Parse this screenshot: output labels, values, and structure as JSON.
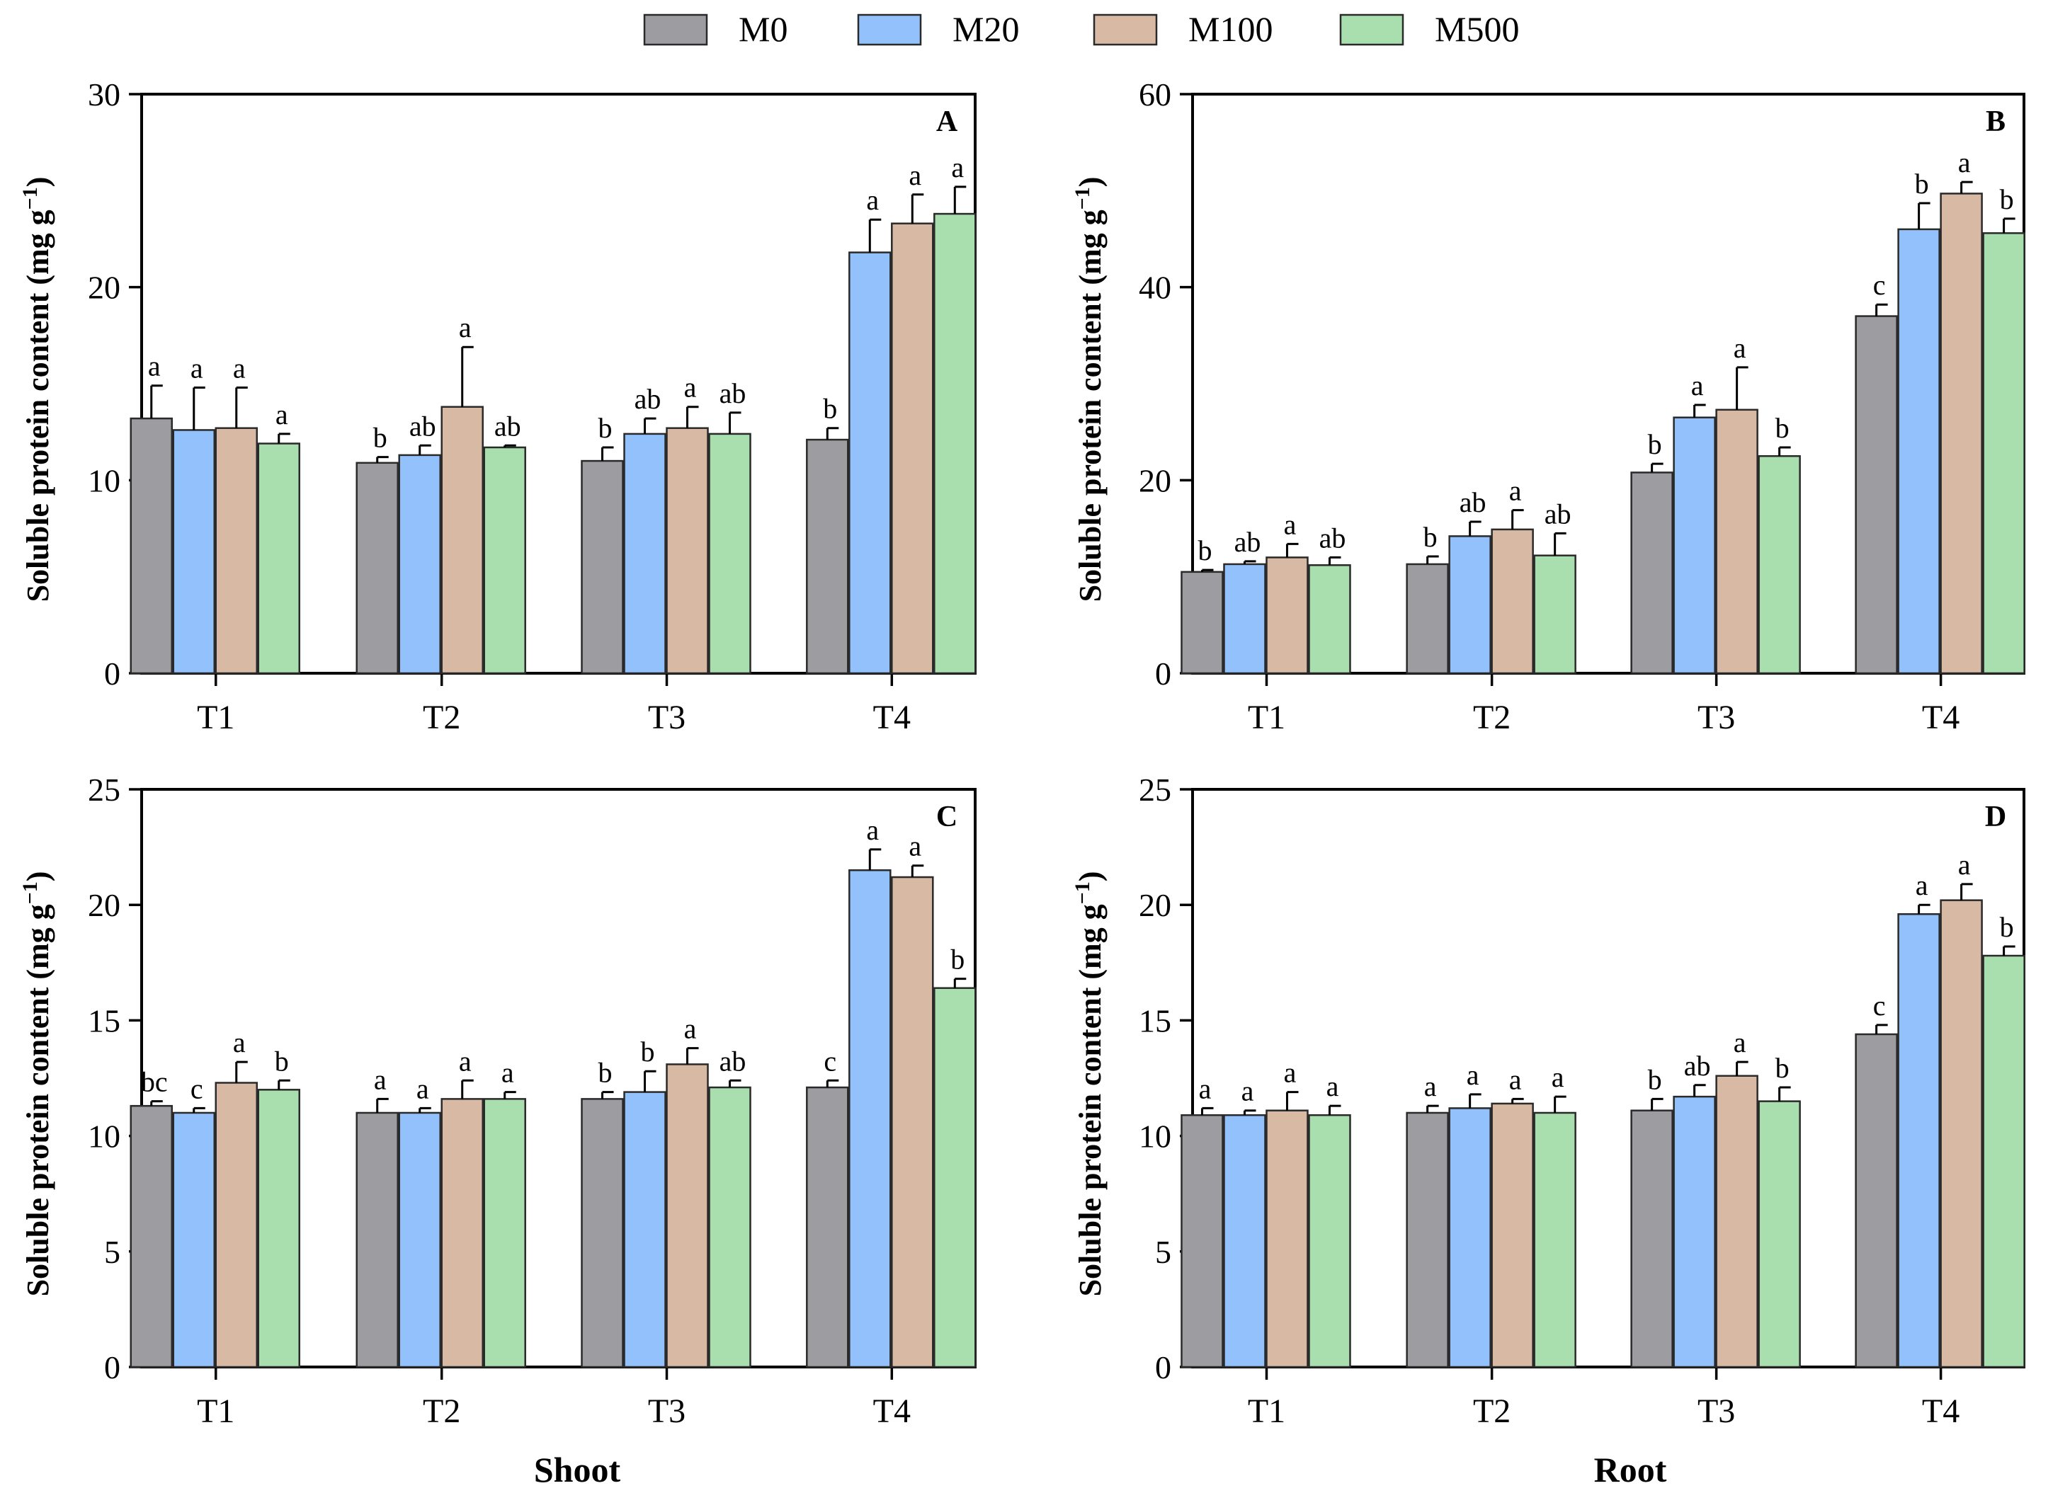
{
  "colors": {
    "M0": "#9c9ca1",
    "M20": "#93c1fb",
    "M100": "#d8b9a4",
    "M500": "#a9dfae"
  },
  "legend": [
    "M0",
    "M20",
    "M100",
    "M500"
  ],
  "y_axis_title": {
    "main": "Soluble protein content (mg g",
    "sup": "−1",
    "close": ")"
  },
  "group_labels": {
    "left": "Shoot",
    "right": "Root"
  },
  "chart_data": [
    {
      "panel": "A",
      "type": "bar",
      "position": "top-left",
      "categories": [
        "T1",
        "T2",
        "T3",
        "T4"
      ],
      "ylim": [
        0,
        30
      ],
      "yticks": [
        0,
        10,
        20,
        30
      ],
      "series": [
        {
          "name": "M0",
          "values": [
            13.2,
            10.9,
            11.0,
            12.1
          ],
          "errors": [
            1.7,
            0.3,
            0.7,
            0.6
          ],
          "letters": [
            "a",
            "b",
            "b",
            "b"
          ]
        },
        {
          "name": "M20",
          "values": [
            12.6,
            11.3,
            12.4,
            21.8
          ],
          "errors": [
            2.2,
            0.5,
            0.8,
            1.7
          ],
          "letters": [
            "a",
            "ab",
            "ab",
            "a"
          ]
        },
        {
          "name": "M100",
          "values": [
            12.7,
            13.8,
            12.7,
            23.3
          ],
          "errors": [
            2.1,
            3.1,
            1.1,
            1.5
          ],
          "letters": [
            "a",
            "a",
            "a",
            "a"
          ]
        },
        {
          "name": "M500",
          "values": [
            11.9,
            11.7,
            12.4,
            23.8
          ],
          "errors": [
            0.5,
            0.1,
            1.1,
            1.4
          ],
          "letters": [
            "a",
            "ab",
            "ab",
            "a"
          ]
        }
      ]
    },
    {
      "panel": "B",
      "type": "bar",
      "position": "top-right",
      "categories": [
        "T1",
        "T2",
        "T3",
        "T4"
      ],
      "ylim": [
        0,
        60
      ],
      "yticks": [
        0,
        20,
        40,
        60
      ],
      "series": [
        {
          "name": "M0",
          "values": [
            10.5,
            11.3,
            20.8,
            37.0
          ],
          "errors": [
            0.2,
            0.8,
            0.9,
            1.2
          ],
          "letters": [
            "b",
            "b",
            "b",
            "c"
          ]
        },
        {
          "name": "M20",
          "values": [
            11.3,
            14.2,
            26.5,
            46.0
          ],
          "errors": [
            0.3,
            1.5,
            1.3,
            2.7
          ],
          "letters": [
            "ab",
            "ab",
            "a",
            "b"
          ]
        },
        {
          "name": "M100",
          "values": [
            12.0,
            14.9,
            27.3,
            49.7
          ],
          "errors": [
            1.4,
            2.0,
            4.4,
            1.2
          ],
          "letters": [
            "a",
            "a",
            "a",
            "a"
          ]
        },
        {
          "name": "M500",
          "values": [
            11.2,
            12.2,
            22.5,
            45.6
          ],
          "errors": [
            0.8,
            2.3,
            0.9,
            1.5
          ],
          "letters": [
            "ab",
            "ab",
            "b",
            "b"
          ]
        }
      ]
    },
    {
      "panel": "C",
      "type": "bar",
      "position": "bottom-left",
      "categories": [
        "T1",
        "T2",
        "T3",
        "T4"
      ],
      "ylim": [
        0,
        25
      ],
      "yticks": [
        0,
        5,
        10,
        15,
        20,
        25
      ],
      "series": [
        {
          "name": "M0",
          "values": [
            11.3,
            11.0,
            11.6,
            12.1
          ],
          "errors": [
            0.2,
            0.6,
            0.3,
            0.3
          ],
          "letters": [
            "bc",
            "a",
            "b",
            "c"
          ]
        },
        {
          "name": "M20",
          "values": [
            11.0,
            11.0,
            11.9,
            21.5
          ],
          "errors": [
            0.2,
            0.2,
            0.9,
            0.9
          ],
          "letters": [
            "c",
            "a",
            "b",
            "a"
          ]
        },
        {
          "name": "M100",
          "values": [
            12.3,
            11.6,
            13.1,
            21.2
          ],
          "errors": [
            0.9,
            0.8,
            0.7,
            0.5
          ],
          "letters": [
            "a",
            "a",
            "a",
            "a"
          ]
        },
        {
          "name": "M500",
          "values": [
            12.0,
            11.6,
            12.1,
            16.4
          ],
          "errors": [
            0.4,
            0.3,
            0.3,
            0.4
          ],
          "letters": [
            "b",
            "a",
            "ab",
            "b"
          ]
        }
      ]
    },
    {
      "panel": "D",
      "type": "bar",
      "position": "bottom-right",
      "categories": [
        "T1",
        "T2",
        "T3",
        "T4"
      ],
      "ylim": [
        0,
        25
      ],
      "yticks": [
        0,
        5,
        10,
        15,
        20,
        25
      ],
      "series": [
        {
          "name": "M0",
          "values": [
            10.9,
            11.0,
            11.1,
            14.4
          ],
          "errors": [
            0.3,
            0.3,
            0.5,
            0.4
          ],
          "letters": [
            "a",
            "a",
            "b",
            "c"
          ]
        },
        {
          "name": "M20",
          "values": [
            10.9,
            11.2,
            11.7,
            19.6
          ],
          "errors": [
            0.2,
            0.6,
            0.5,
            0.4
          ],
          "letters": [
            "a",
            "a",
            "ab",
            "a"
          ]
        },
        {
          "name": "M100",
          "values": [
            11.1,
            11.4,
            12.6,
            20.2
          ],
          "errors": [
            0.8,
            0.2,
            0.6,
            0.7
          ],
          "letters": [
            "a",
            "a",
            "a",
            "a"
          ]
        },
        {
          "name": "M500",
          "values": [
            10.9,
            11.0,
            11.5,
            17.8
          ],
          "errors": [
            0.4,
            0.7,
            0.6,
            0.4
          ],
          "letters": [
            "a",
            "a",
            "b",
            "b"
          ]
        }
      ]
    }
  ]
}
